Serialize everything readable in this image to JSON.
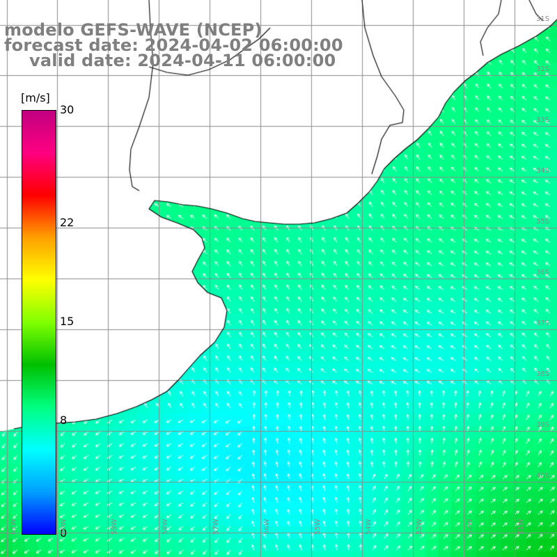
{
  "title": {
    "model": "modelo GEFS-WAVE (NCEP)",
    "forecast": "forecast date: 2024-04-02 06:00:00",
    "valid": "valid date: 2024-04-11 06:00:00"
  },
  "colorbar": {
    "unit": "[m/s]",
    "min": 0,
    "max": 30,
    "ticks": [
      {
        "value": 30,
        "label": "30"
      },
      {
        "value": 22,
        "label": "22"
      },
      {
        "value": 15,
        "label": "15"
      },
      {
        "value": 8,
        "label": "8"
      },
      {
        "value": 0,
        "label": "0"
      }
    ],
    "colors": [
      "#0000ff",
      "#00a0ff",
      "#00ffff",
      "#00ff80",
      "#00c000",
      "#80ff00",
      "#ffff00",
      "#ffa000",
      "#ff0000",
      "#ff0080",
      "#c00080"
    ]
  },
  "map": {
    "land_color": "#ffffff",
    "grid_color": "#8c8c8c",
    "coast_color": "#000000",
    "arrow_color": "#ffffff",
    "lat_labels": [
      "31S",
      "32S",
      "33S",
      "34S",
      "35S",
      "36S",
      "37S",
      "38S",
      "39S",
      "40S"
    ],
    "lon_labels": [
      "61W",
      "60W",
      "59W",
      "58W",
      "57W",
      "56W",
      "55W",
      "54W",
      "53W",
      "52W",
      "51W"
    ]
  }
}
